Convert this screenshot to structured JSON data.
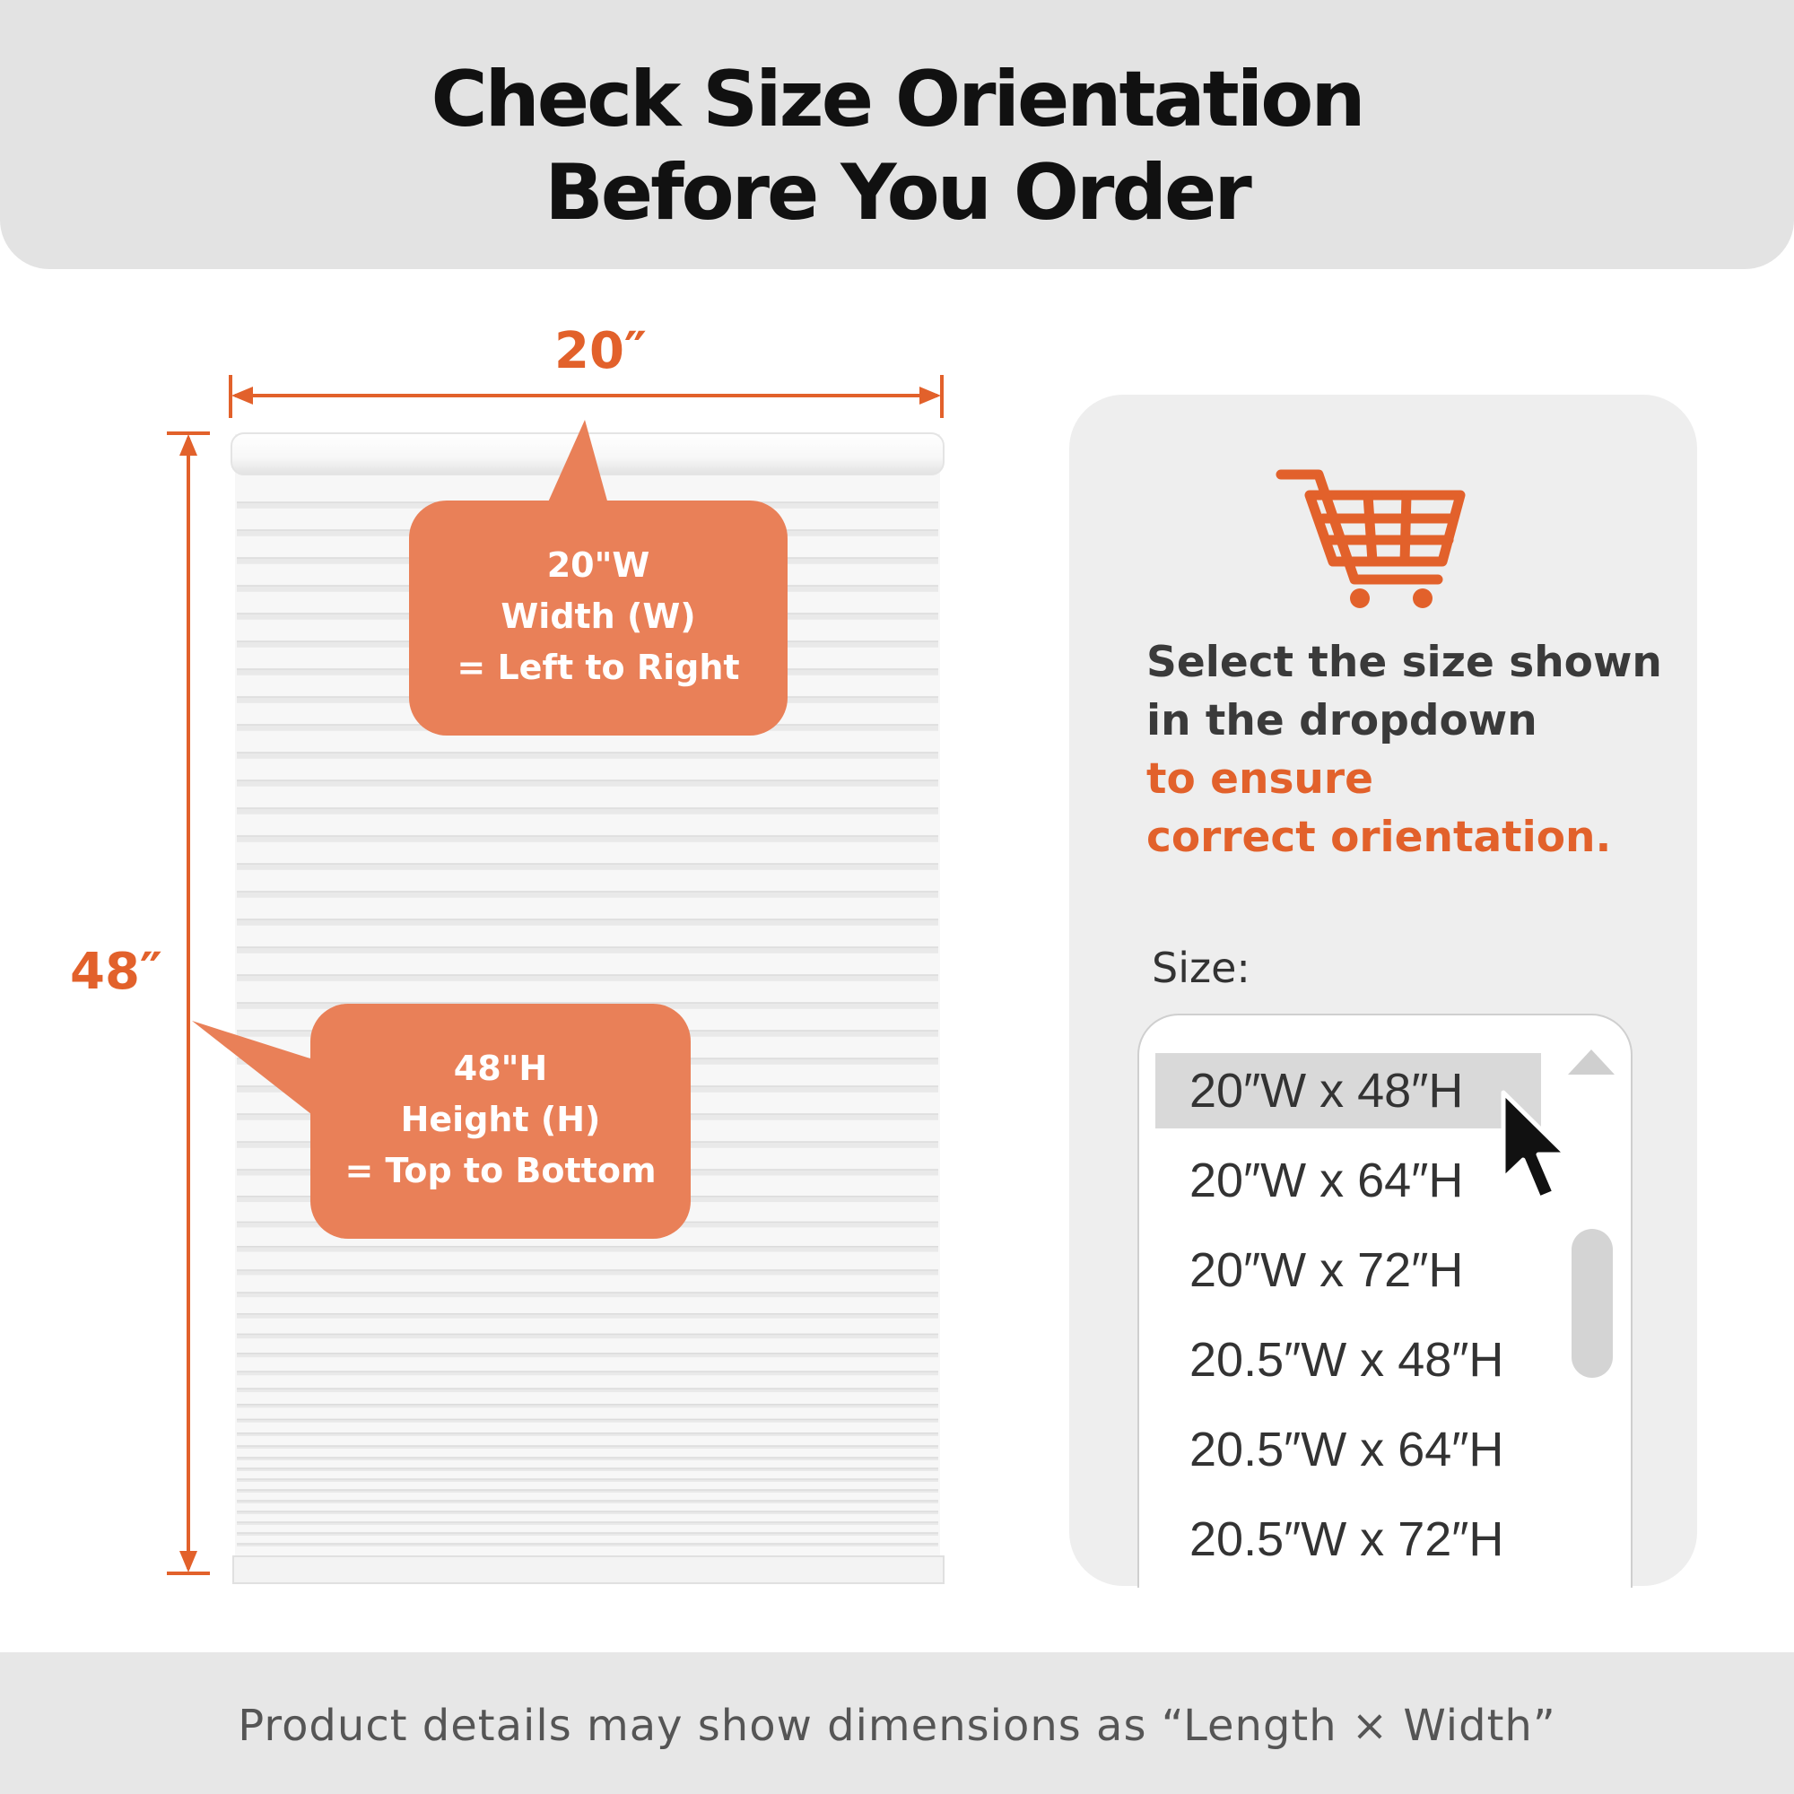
{
  "header": {
    "title_line1": "Check Size Orientation",
    "title_line2": "Before You Order"
  },
  "diagram": {
    "width_label": "20″",
    "height_label": "48″",
    "width_callout": [
      "20\"W",
      "Width (W)",
      "= Left to Right"
    ],
    "height_callout": [
      "48\"H",
      "Height (H)",
      "= Top to Bottom"
    ]
  },
  "panel": {
    "cart_icon": "shopping-cart-icon",
    "instruction_dark": [
      "Select the size shown",
      "in the dropdown"
    ],
    "instruction_orange": [
      "to ensure",
      "correct orientation."
    ],
    "size_label": "Size:",
    "options": [
      "20″W x 48″H",
      "20″W x 64″H",
      "20″W x 72″H",
      "20.5″W x 48″H",
      "20.5″W x 64″H",
      "20.5″W x 72″H"
    ],
    "selected_option": "20″W x 48″H"
  },
  "footer": {
    "note": "Product details may show dimensions as “Length × Width”"
  },
  "colors": {
    "accent_orange": "#e2612b",
    "callout_fill": "#e98058",
    "header_bg": "#e3e3e3",
    "panel_bg": "#eeeeee"
  }
}
